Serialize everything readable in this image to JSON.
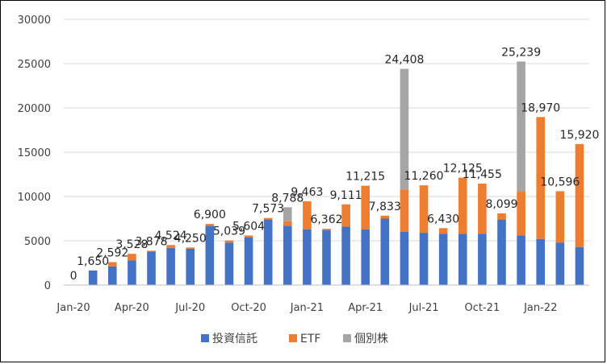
{
  "chart_data": {
    "type": "bar",
    "stacked": true,
    "x": [
      "Jan-20",
      "Feb-20",
      "Mar-20",
      "Apr-20",
      "May-20",
      "Jun-20",
      "Jul-20",
      "Aug-20",
      "Sep-20",
      "Oct-20",
      "Nov-20",
      "Dec-20",
      "Jan-21",
      "Feb-21",
      "Mar-21",
      "Apr-21",
      "May-21",
      "Jun-21",
      "Jul-21",
      "Aug-21",
      "Sep-21",
      "Oct-21",
      "Nov-21",
      "Dec-21",
      "Jan-22",
      "Feb-22",
      "Mar-22"
    ],
    "x_tick_labels": [
      "Jan-20",
      "",
      "",
      "Apr-20",
      "",
      "",
      "Jul-20",
      "",
      "",
      "Oct-20",
      "",
      "",
      "Jan-21",
      "",
      "",
      "Apr-21",
      "",
      "",
      "Jul-21",
      "",
      "",
      "Oct-21",
      "",
      "",
      "Jan-22",
      "",
      ""
    ],
    "series": [
      {
        "name": "投資信託",
        "color": "#4472C4",
        "values": [
          0,
          1650,
          2100,
          2800,
          3800,
          4200,
          4100,
          6700,
          4800,
          5400,
          7400,
          6700,
          6300,
          6200,
          6600,
          6300,
          7500,
          6000,
          5900,
          5800,
          5800,
          5800,
          7400,
          5600,
          5200,
          4800,
          4300
        ]
      },
      {
        "name": "ETF",
        "color": "#ED7D31",
        "values": [
          0,
          0,
          492,
          728,
          78,
          324,
          150,
          200,
          239,
          204,
          173,
          500,
          3163,
          162,
          2511,
          4915,
          333,
          4800,
          5360,
          630,
          6325,
          5655,
          699,
          5000,
          13770,
          5796,
          11620
        ]
      },
      {
        "name": "個別株",
        "color": "#A5A5A5",
        "values": [
          0,
          0,
          0,
          0,
          0,
          0,
          0,
          0,
          0,
          0,
          0,
          1588,
          0,
          0,
          0,
          0,
          0,
          13608,
          0,
          0,
          0,
          0,
          0,
          14639,
          0,
          0,
          0
        ]
      }
    ],
    "total_labels": [
      "0",
      "1,650",
      "2,592",
      "3,528",
      "3,878",
      "4,524",
      "4,250",
      "6,900",
      "5,039",
      "5,604",
      "7,573",
      "8,788",
      "9,463",
      "6,362",
      "9,111",
      "11,215",
      "7,833",
      "24,408",
      "11,260",
      "6,430",
      "12,125",
      "11,455",
      "8,099",
      "25,239",
      "18,970",
      "10,596",
      "15,920"
    ],
    "y_ticks": [
      "0",
      "5000",
      "10000",
      "15000",
      "20000",
      "25000",
      "30000"
    ],
    "ylim": [
      0,
      30000
    ],
    "grid": true,
    "legend_position": "bottom",
    "title": "",
    "xlabel": "",
    "ylabel": ""
  },
  "legend": {
    "items": [
      {
        "label": "投資信託",
        "color": "#4472C4"
      },
      {
        "label": "ETF",
        "color": "#ED7D31"
      },
      {
        "label": "個別株",
        "color": "#A5A5A5"
      }
    ]
  }
}
